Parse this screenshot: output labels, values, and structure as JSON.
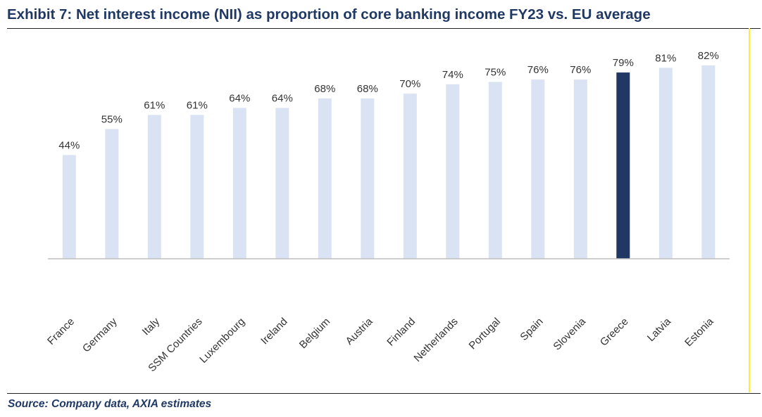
{
  "title": "Exhibit 7: Net interest income (NII) as proportion of core banking income FY23 vs. EU average",
  "source": "Source: Company data, AXIA estimates",
  "colors": {
    "bar": "#dae3f3",
    "highlight": "#203864",
    "axis": "#bfbfbf"
  },
  "chart_data": {
    "type": "bar",
    "categories": [
      "France",
      "Germany",
      "Italy",
      "SSM Countries",
      "Luxembourg",
      "Ireland",
      "Belgium",
      "Austria",
      "Finland",
      "Netherlands",
      "Portugal",
      "Spain",
      "Slovenia",
      "Greece",
      "Latvia",
      "Estonia"
    ],
    "values": [
      44,
      55,
      61,
      61,
      64,
      64,
      68,
      68,
      70,
      74,
      75,
      76,
      76,
      79,
      81,
      82
    ],
    "data_labels": [
      "44%",
      "55%",
      "61%",
      "61%",
      "64%",
      "64%",
      "68%",
      "68%",
      "70%",
      "74%",
      "75%",
      "76%",
      "76%",
      "79%",
      "81%",
      "82%"
    ],
    "highlight_category": "Greece",
    "ylim": [
      0,
      82
    ],
    "grid": false,
    "legend": false
  }
}
